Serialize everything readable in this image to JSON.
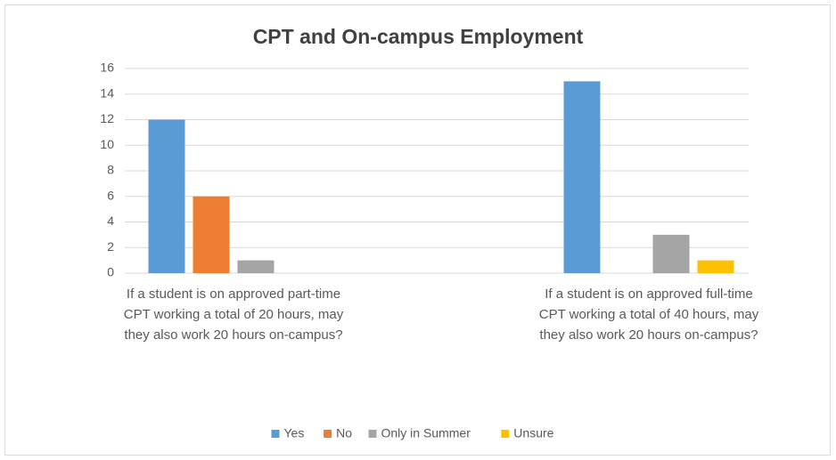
{
  "chart_data": {
    "type": "bar",
    "title": "CPT and On-campus  Employment",
    "categories": [
      "If a student is on approved part-time CPT working a total of 20 hours, may they also work 20 hours on-campus?",
      "If a student is on approved full-time CPT working a total of 40 hours, may they also work 20 hours on-campus?"
    ],
    "series": [
      {
        "name": "Yes",
        "color": "#5b9bd5",
        "values": [
          12,
          15
        ]
      },
      {
        "name": "No",
        "color": "#ed7d31",
        "values": [
          6,
          0
        ]
      },
      {
        "name": "Only in Summer",
        "color": "#a5a5a5",
        "values": [
          1,
          3
        ]
      },
      {
        "name": "Unsure",
        "color": "#ffc000",
        "values": [
          0,
          1
        ]
      }
    ],
    "ylim": [
      0,
      16
    ],
    "yticks": [
      0,
      2,
      4,
      6,
      8,
      10,
      12,
      14,
      16
    ],
    "grid": true,
    "legend": "bottom"
  }
}
